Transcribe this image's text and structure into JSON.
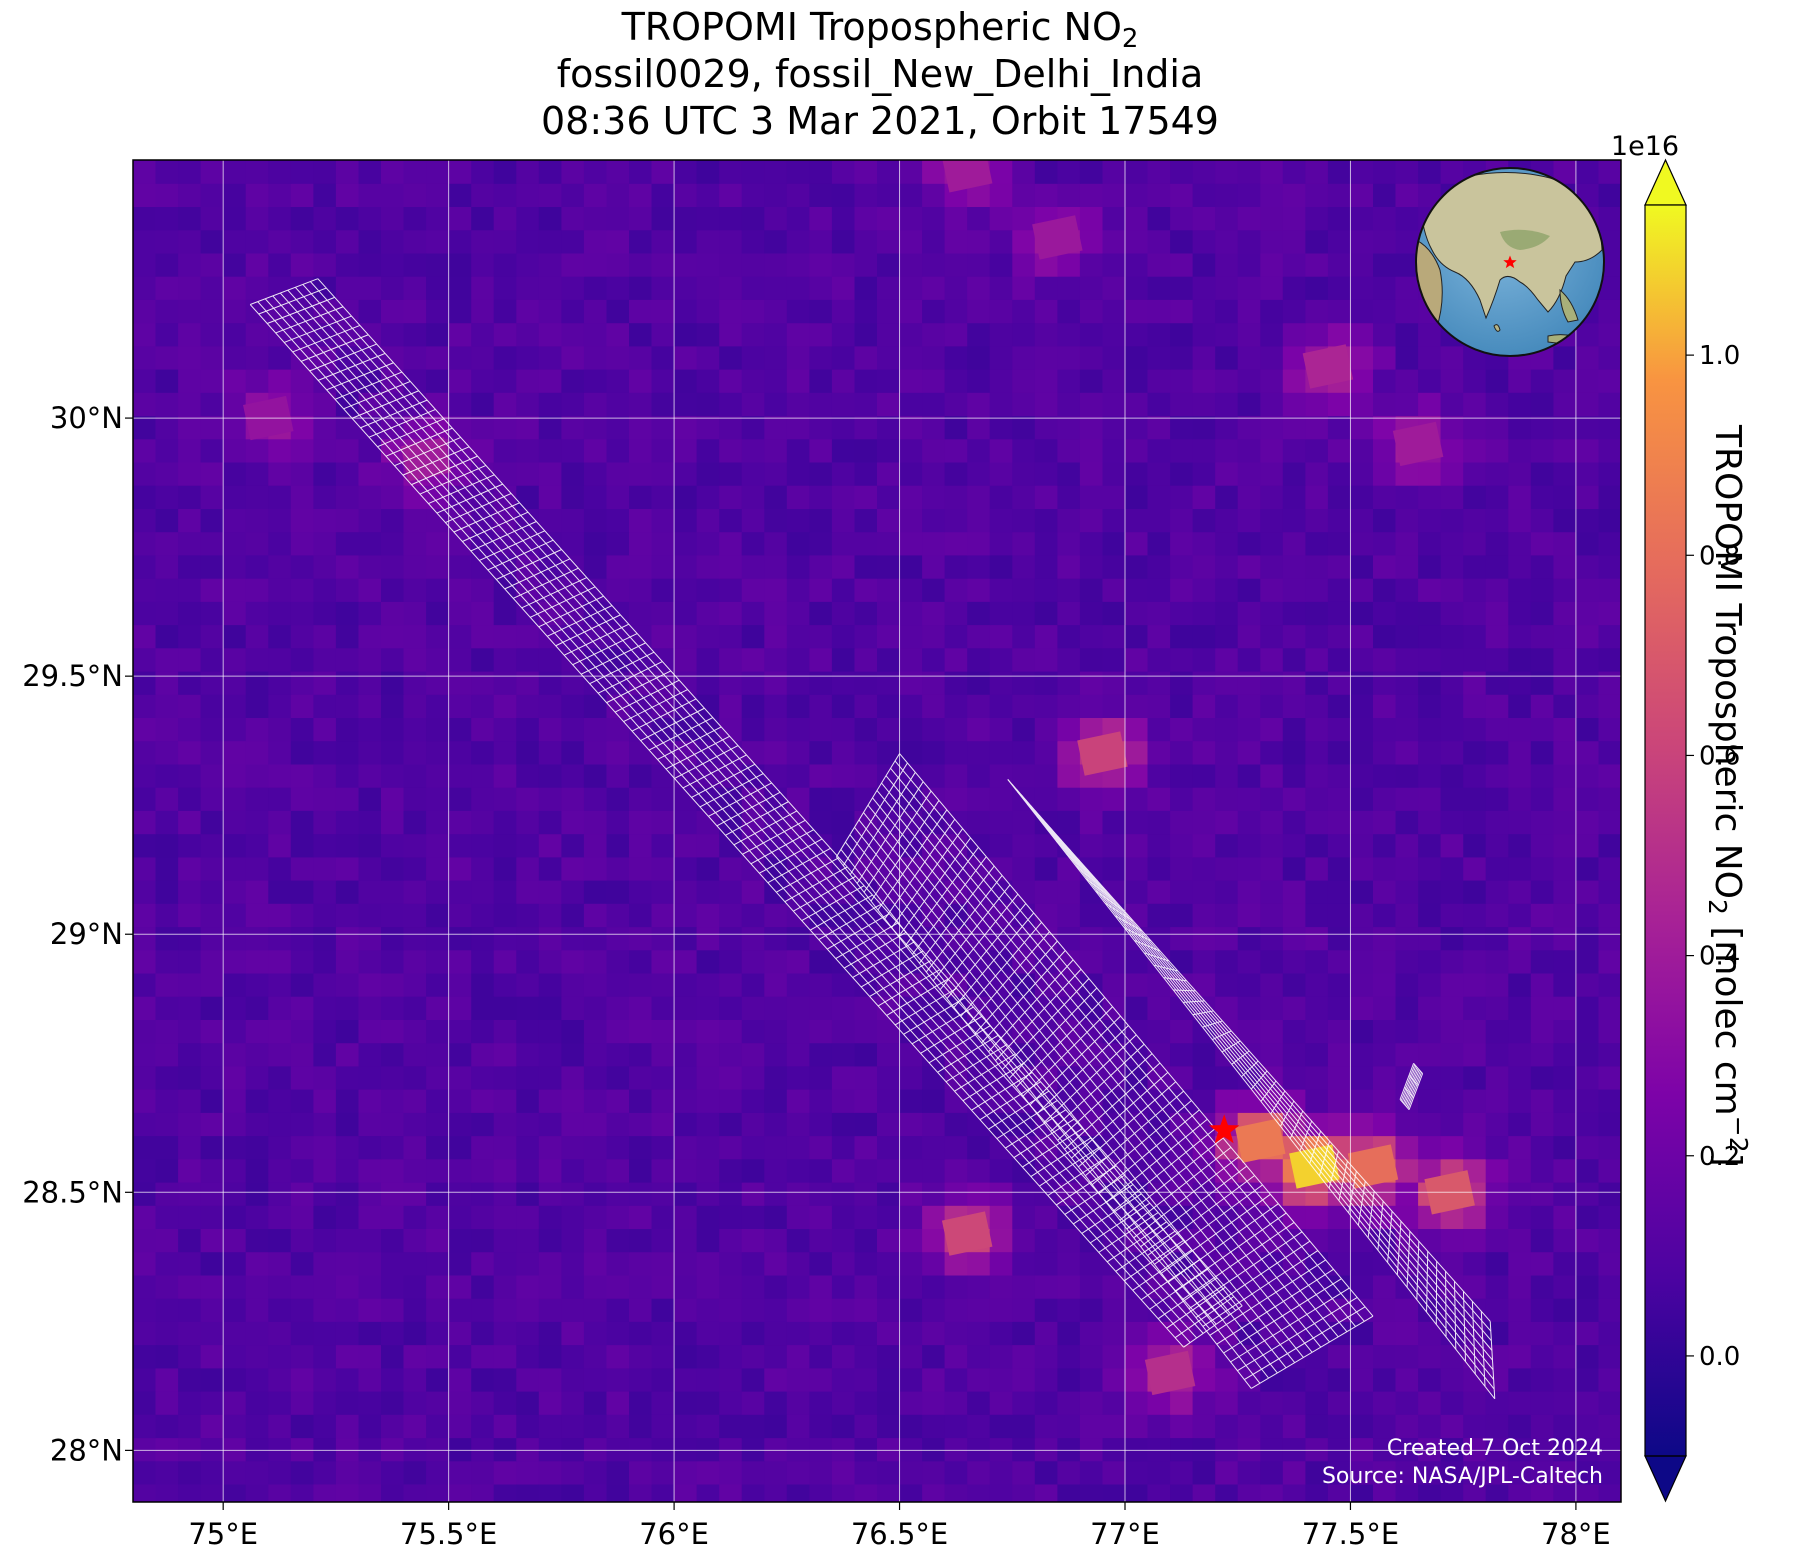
{
  "title": {
    "line1": "TROPOMI Tropospheric NO",
    "line1_sub": "2",
    "line2": "fossil0029, fossil_New_Delhi_India",
    "line3": "08:36 UTC 3 Mar 2021, Orbit 17549"
  },
  "chart_data": {
    "type": "heatmap",
    "projection": "plate-carree",
    "colormap": "plasma",
    "lon_range": [
      74.8,
      78.1
    ],
    "lat_range": [
      27.9,
      30.5
    ],
    "x_ticks": [
      "75°E",
      "75.5°E",
      "76°E",
      "76.5°E",
      "77°E",
      "77.5°E",
      "78°E"
    ],
    "x_tick_values": [
      75,
      75.5,
      76,
      76.5,
      77,
      77.5,
      78
    ],
    "y_ticks": [
      "30°N",
      "29.5°N",
      "29°N",
      "28.5°N",
      "28°N"
    ],
    "y_tick_values": [
      30,
      29.5,
      29,
      28.5,
      28
    ],
    "gridlines": true,
    "target": {
      "lon": 77.22,
      "lat": 28.62,
      "marker": "red-star"
    },
    "hotspots": [
      {
        "lon": 77.42,
        "lat": 28.55,
        "value": 1.08e+16
      },
      {
        "lon": 77.3,
        "lat": 28.6,
        "value": 8500000000000000.0
      },
      {
        "lon": 77.55,
        "lat": 28.55,
        "value": 8000000000000000.0
      },
      {
        "lon": 77.72,
        "lat": 28.5,
        "value": 7000000000000000.0
      },
      {
        "lon": 76.65,
        "lat": 28.42,
        "value": 6200000000000000.0
      },
      {
        "lon": 76.95,
        "lat": 29.35,
        "value": 6000000000000000.0
      },
      {
        "lon": 77.1,
        "lat": 28.15,
        "value": 5000000000000000.0
      },
      {
        "lon": 77.45,
        "lat": 30.1,
        "value": 4500000000000000.0
      },
      {
        "lon": 77.65,
        "lat": 29.95,
        "value": 4000000000000000.0
      },
      {
        "lon": 75.45,
        "lat": 29.92,
        "value": 4000000000000000.0
      },
      {
        "lon": 76.65,
        "lat": 30.48,
        "value": 4000000000000000.0
      },
      {
        "lon": 76.85,
        "lat": 30.35,
        "value": 3800000000000000.0
      },
      {
        "lon": 75.1,
        "lat": 30.0,
        "value": 3500000000000000.0
      }
    ],
    "colorbar": {
      "min": -1000000000000000.0,
      "max": 1.15e+16,
      "ticks": [
        "0.0",
        "0.2",
        "0.4",
        "0.6",
        "0.8",
        "1.0"
      ],
      "tick_values": [
        0,
        2000000000000000.0,
        4000000000000000.0,
        6000000000000000.0,
        8000000000000000.0,
        1e+16
      ],
      "offset_label": "1e16",
      "extend": "both",
      "label": "TROPOMI Tropospheric NO",
      "label_sub": "2",
      "label_units": " [molec cm",
      "label_sup": "−2",
      "label_end": "]"
    }
  },
  "footer": {
    "created": "Created 7 Oct 2024",
    "source": "Source: NASA/JPL-Caltech"
  },
  "inset": {
    "type": "globe",
    "marker": "red-star"
  }
}
